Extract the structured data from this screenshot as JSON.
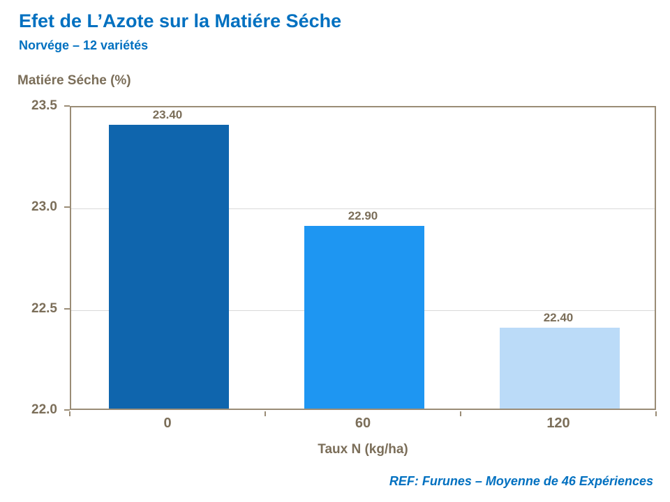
{
  "header": {
    "title": "Efet de L’Azote sur la Matiére Séche",
    "subtitle": "Norvége – 12 variétés"
  },
  "chart_data": {
    "type": "bar",
    "title": "Efet de L’Azote sur la Matiére Séche — Norvége – 12 variétés",
    "categories": [
      "0",
      "60",
      "120"
    ],
    "values": [
      23.4,
      22.9,
      22.4
    ],
    "value_labels": [
      "23.40",
      "22.90",
      "22.40"
    ],
    "bar_colors": [
      "#0F65AD",
      "#1E96F2",
      "#BBDBF8"
    ],
    "xlabel": "Taux N (kg/ha)",
    "ylabel": "Matiére Séche (%)",
    "ylim": [
      22.0,
      23.5
    ],
    "yticks": [
      22.0,
      22.5,
      23.0,
      23.5
    ],
    "ytick_labels": [
      "22.0",
      "22.5",
      "23.0",
      "23.5"
    ],
    "grid": true,
    "legend": false
  },
  "footer": {
    "ref": "REF: Furunes – Moyenne de 46 Expériences"
  },
  "colors": {
    "accent_blue": "#0070C0",
    "axis_text": "#7B6E59",
    "gridline": "#D9D9D9",
    "plot_border": "#9A8C76"
  }
}
